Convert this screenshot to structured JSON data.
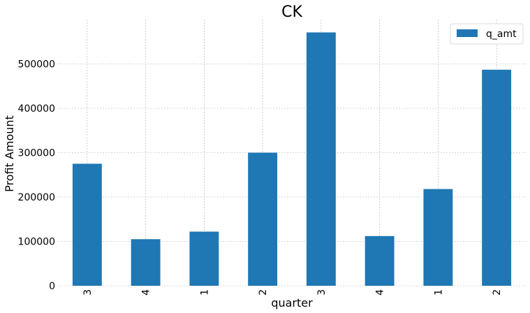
{
  "chart_data": {
    "type": "bar",
    "title": "CK",
    "xlabel": "quarter",
    "ylabel": "Profit Amount",
    "categories": [
      "3",
      "4",
      "1",
      "2",
      "3",
      "4",
      "1",
      "2"
    ],
    "series": [
      {
        "name": "q_amt",
        "values": [
          275000,
          105000,
          122000,
          300000,
          571000,
          112000,
          218000,
          487000
        ]
      }
    ],
    "ylim": [
      0,
      600000
    ],
    "yticks": [
      0,
      100000,
      200000,
      300000,
      400000,
      500000
    ],
    "ytick_labels": [
      "0",
      "100000",
      "200000",
      "300000",
      "400000",
      "500000"
    ],
    "grid": true,
    "legend_position": "top-right",
    "bar_color": "#1f77b4"
  }
}
